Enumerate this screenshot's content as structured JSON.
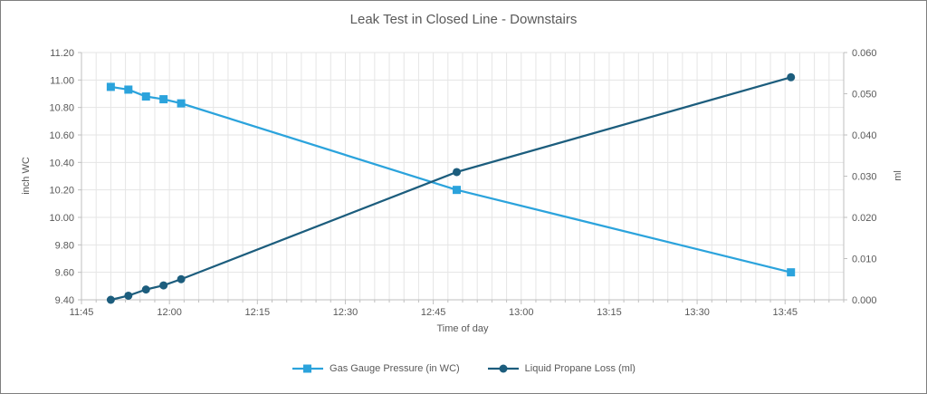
{
  "chart_data": {
    "type": "line",
    "title": "Leak Test in Closed Line - Downstairs",
    "legend_position": "bottom",
    "grid": "on",
    "x_axis": {
      "label": "Time of day",
      "tick_labels": [
        "11:45",
        "12:00",
        "12:15",
        "12:30",
        "12:45",
        "13:00",
        "13:15",
        "13:30",
        "13:45"
      ],
      "start_min": 705,
      "end_min": 835,
      "major_tick_min": 15,
      "minor_grid_min": 2.5
    },
    "y_left": {
      "label": "inch WC",
      "min": 9.4,
      "max": 11.2,
      "step": 0.2,
      "ticks": [
        "11.20",
        "11.00",
        "10.80",
        "10.60",
        "10.40",
        "10.20",
        "10.00",
        "9.80",
        "9.60",
        "9.40"
      ]
    },
    "y_right": {
      "label": "ml",
      "min": 0.0,
      "max": 0.06,
      "step": 0.01,
      "ticks": [
        "0.060",
        "0.050",
        "0.040",
        "0.030",
        "0.020",
        "0.010",
        "0.000"
      ]
    },
    "series": [
      {
        "name": "Gas Gauge Pressure (in WC)",
        "axis": "left",
        "color": "#2BA3DC",
        "marker": "square",
        "x": [
          "11:50",
          "11:53",
          "11:56",
          "11:59",
          "12:02",
          "12:49",
          "13:46"
        ],
        "values": [
          10.95,
          10.93,
          10.88,
          10.86,
          10.83,
          10.2,
          9.6
        ]
      },
      {
        "name": "Liquid Propane Loss (ml)",
        "axis": "right",
        "color": "#1C5D7D",
        "marker": "circle",
        "x": [
          "11:50",
          "11:53",
          "11:56",
          "11:59",
          "12:02",
          "12:49",
          "13:46"
        ],
        "values": [
          0.0,
          0.001,
          0.0025,
          0.0035,
          0.005,
          0.031,
          0.054
        ]
      }
    ],
    "colors": {
      "title_text": "#595959",
      "axis_text": "#595959",
      "gridline": "#e5e5e5",
      "axis_line": "#bfbfbf",
      "background": "#ffffff"
    }
  }
}
